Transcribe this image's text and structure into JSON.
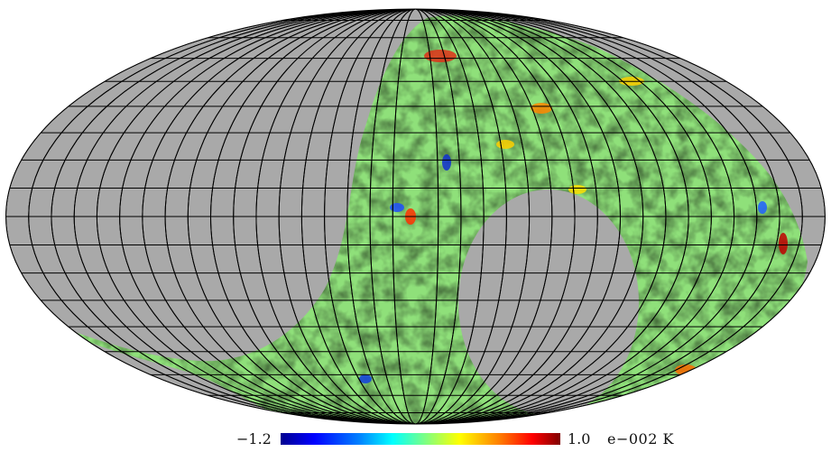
{
  "map": {
    "projection": "Mollweide",
    "colormap": "jet",
    "mask_color": "#a9a9a9",
    "graticule_color": "#000000",
    "meridian_count": 36,
    "parallel_spacing_deg": 10
  },
  "colorbar": {
    "min_label": "−1.2",
    "max_label": "1.0",
    "unit_label": "e−002 K"
  }
}
